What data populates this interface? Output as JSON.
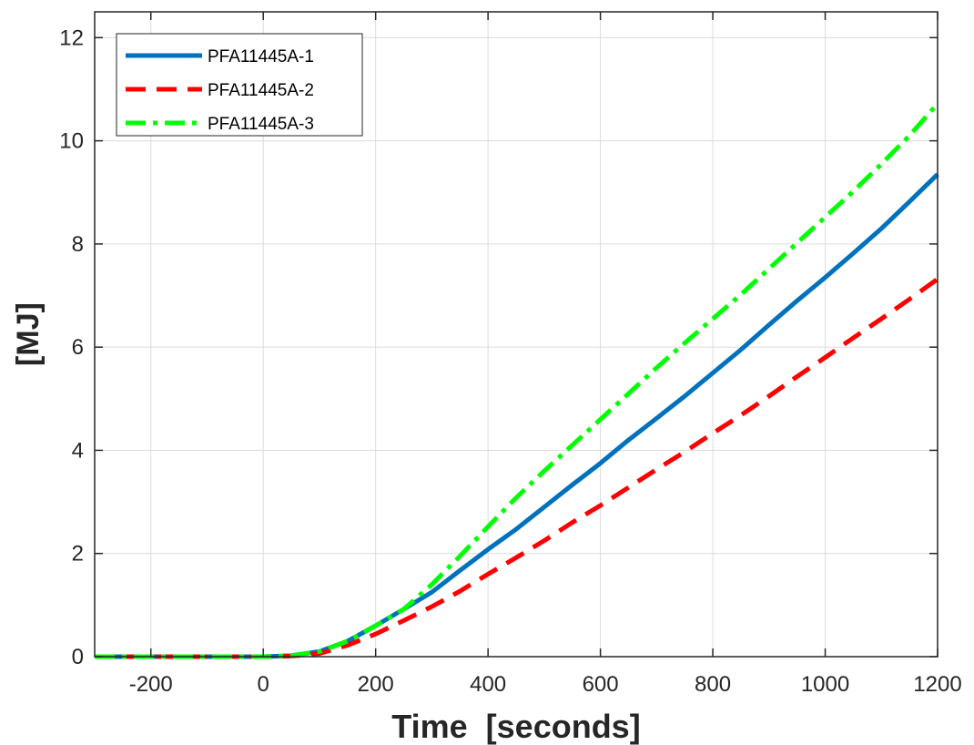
{
  "chart_data": {
    "type": "line",
    "title": "",
    "xlabel": "Time  [seconds]",
    "ylabel": "[MJ]",
    "xlim": [
      -300,
      1200
    ],
    "ylim": [
      0,
      12.5
    ],
    "x_ticks": [
      -200,
      0,
      200,
      400,
      600,
      800,
      1000,
      1200
    ],
    "x_tick_labels": [
      "-200",
      "0",
      "200",
      "400",
      "600",
      "800",
      "1000",
      "1200"
    ],
    "y_ticks": [
      0,
      2,
      4,
      6,
      8,
      10,
      12
    ],
    "y_tick_labels": [
      "0",
      "2",
      "4",
      "6",
      "8",
      "10",
      "12"
    ],
    "grid": true,
    "legend_position": "top-left",
    "series": [
      {
        "name": "PFA11445A-1",
        "color": "#0072BD",
        "style": "solid",
        "x": [
          -300,
          0,
          50,
          100,
          150,
          200,
          250,
          300,
          350,
          400,
          450,
          500,
          550,
          600,
          650,
          700,
          750,
          800,
          850,
          900,
          950,
          1000,
          1050,
          1100,
          1150,
          1200
        ],
        "y": [
          0,
          0,
          0.02,
          0.1,
          0.3,
          0.6,
          0.92,
          1.25,
          1.67,
          2.08,
          2.47,
          2.9,
          3.33,
          3.75,
          4.2,
          4.62,
          5.05,
          5.5,
          5.95,
          6.43,
          6.9,
          7.35,
          7.82,
          8.3,
          8.82,
          9.35
        ]
      },
      {
        "name": "PFA11445A-2",
        "color": "#FF0000",
        "style": "dashed",
        "x": [
          -300,
          0,
          50,
          100,
          150,
          200,
          250,
          300,
          350,
          400,
          450,
          500,
          550,
          600,
          650,
          700,
          750,
          800,
          850,
          900,
          950,
          1000,
          1050,
          1100,
          1150,
          1200
        ],
        "y": [
          0,
          0,
          0.01,
          0.06,
          0.22,
          0.44,
          0.7,
          0.97,
          1.27,
          1.6,
          1.92,
          2.25,
          2.6,
          2.93,
          3.28,
          3.63,
          3.97,
          4.33,
          4.68,
          5.05,
          5.43,
          5.8,
          6.18,
          6.55,
          6.93,
          7.32
        ]
      },
      {
        "name": "PFA11445A-3",
        "color": "#00FF00",
        "style": "dashdot",
        "x": [
          -300,
          0,
          50,
          100,
          150,
          200,
          250,
          300,
          350,
          400,
          450,
          500,
          550,
          600,
          650,
          700,
          750,
          800,
          850,
          900,
          950,
          1000,
          1050,
          1100,
          1150,
          1200
        ],
        "y": [
          0,
          0,
          0.02,
          0.1,
          0.3,
          0.6,
          0.92,
          1.4,
          1.95,
          2.52,
          3.08,
          3.6,
          4.1,
          4.6,
          5.1,
          5.6,
          6.08,
          6.55,
          7.02,
          7.52,
          8.02,
          8.52,
          9.02,
          9.55,
          10.1,
          10.72
        ]
      }
    ]
  }
}
